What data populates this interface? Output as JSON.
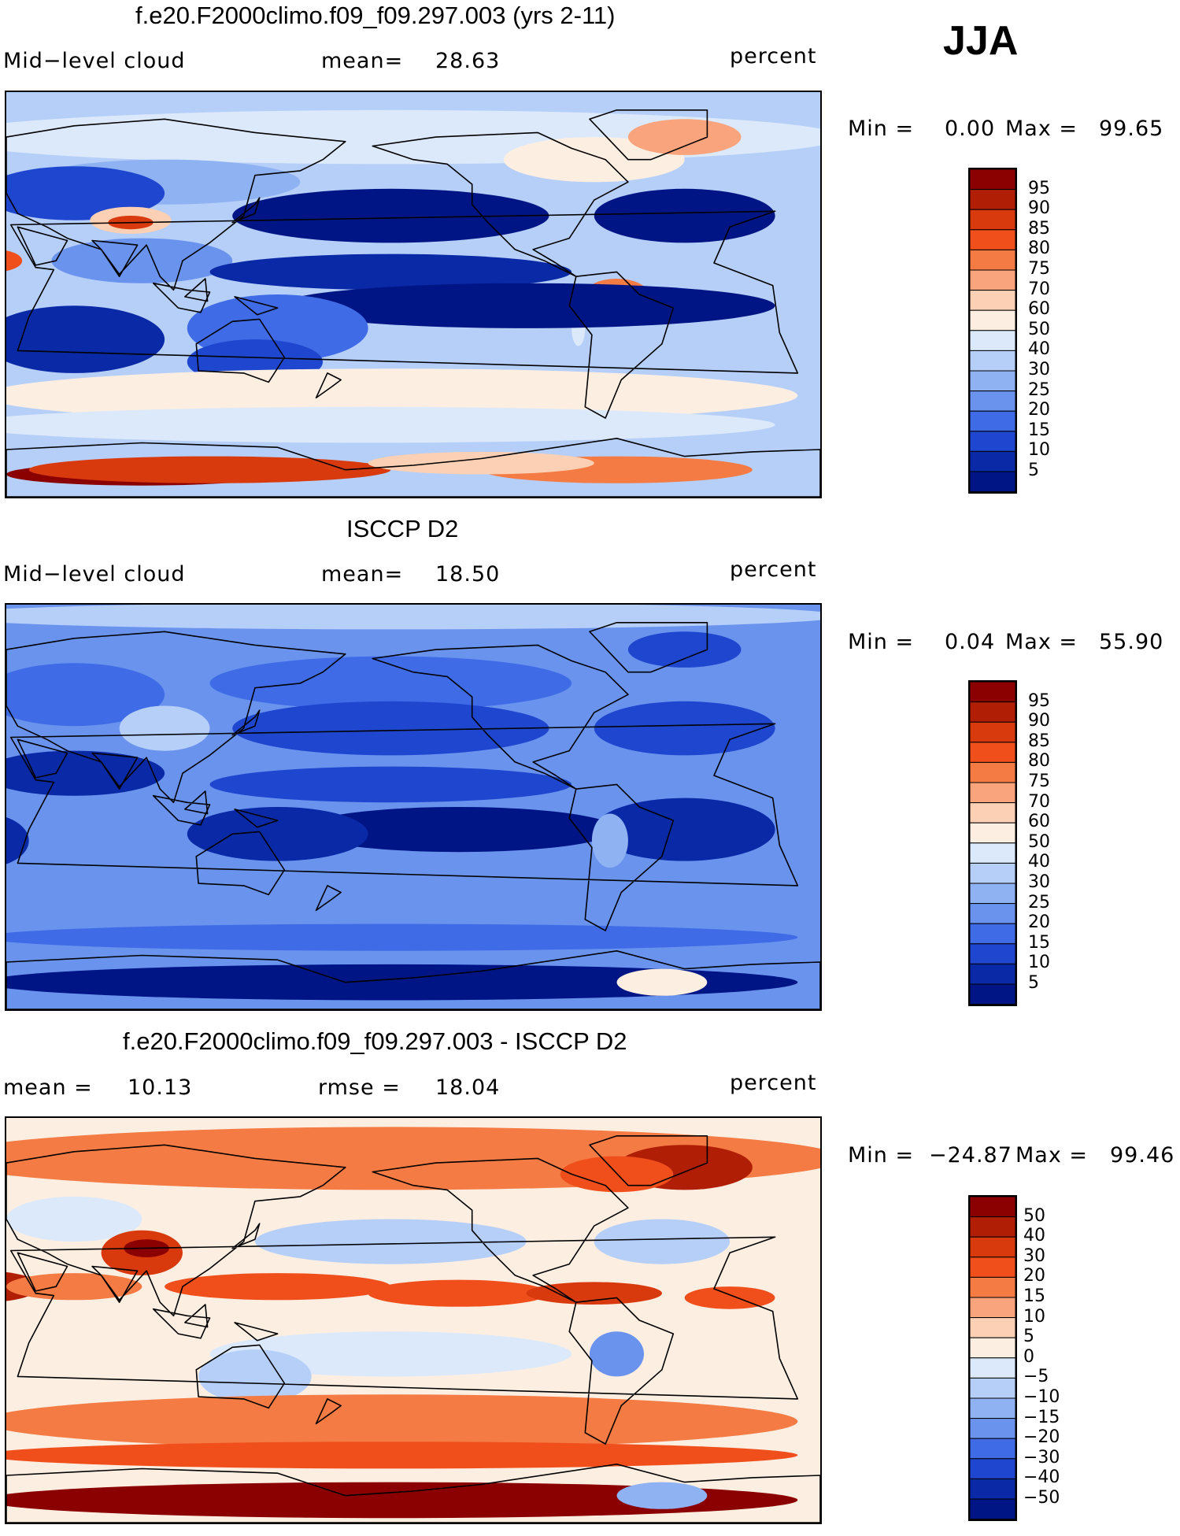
{
  "season": "JJA",
  "panels": [
    {
      "id": "model",
      "title": "f.e20.F2000climo.f09_f09.297.003 (yrs 2-11)",
      "left_label": "Mid−level cloud",
      "mid_label": "mean=",
      "mid_value": "28.63",
      "right_label": "",
      "right_value": "",
      "units": "percent",
      "min_label": "Min =",
      "min_value": "0.00",
      "max_label": "Max =",
      "max_value": "99.65",
      "colorbar_ticks": [
        "95",
        "90",
        "85",
        "80",
        "75",
        "70",
        "60",
        "50",
        "40",
        "30",
        "25",
        "20",
        "15",
        "10",
        "5"
      ],
      "palette": "abs"
    },
    {
      "id": "obs",
      "title": "ISCCP D2",
      "left_label": "Mid−level cloud",
      "mid_label": "mean=",
      "mid_value": "18.50",
      "right_label": "",
      "right_value": "",
      "units": "percent",
      "min_label": "Min =",
      "min_value": "0.04",
      "max_label": "Max =",
      "max_value": "55.90",
      "colorbar_ticks": [
        "95",
        "90",
        "85",
        "80",
        "75",
        "70",
        "60",
        "50",
        "40",
        "30",
        "25",
        "20",
        "15",
        "10",
        "5"
      ],
      "palette": "abs"
    },
    {
      "id": "diff",
      "title": "f.e20.F2000climo.f09_f09.297.003 - ISCCP D2",
      "left_label": "mean =",
      "left_value": "10.13",
      "mid_label": "rmse =",
      "mid_value": "18.04",
      "units": "percent",
      "min_label": "Min =",
      "min_value": "−24.87",
      "max_label": "Max =",
      "max_value": "99.46",
      "colorbar_ticks": [
        "50",
        "40",
        "30",
        "20",
        "15",
        "10",
        "5",
        "0",
        "−5",
        "−10",
        "−15",
        "−20",
        "−30",
        "−40",
        "−50"
      ],
      "palette": "diff"
    }
  ],
  "colors": {
    "ramp": [
      "#8b0000",
      "#b01e05",
      "#d83a0e",
      "#f04f1c",
      "#f47b43",
      "#f9a47c",
      "#fcd0b4",
      "#fdeee2",
      "#dbe9fb",
      "#b6cff8",
      "#8fb2f3",
      "#6a93ee",
      "#3f6be6",
      "#1f46cf",
      "#0a29a6",
      "#001585"
    ],
    "coast": "#000000"
  }
}
